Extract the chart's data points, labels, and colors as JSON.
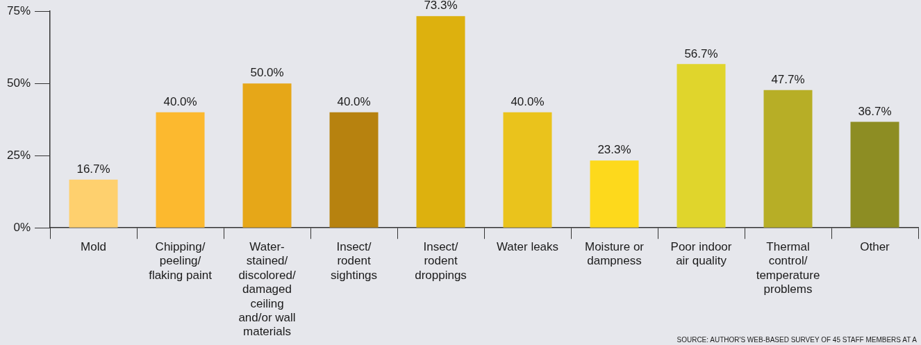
{
  "chart_data": {
    "type": "bar",
    "categories": [
      "Mold",
      "Chipping/ peeling/ flaking paint",
      "Water-stained/ discolored/ damaged ceiling and/or wall materials",
      "Insect/ rodent sightings",
      "Insect/ rodent droppings",
      "Water leaks",
      "Moisture or dampness",
      "Poor indoor air quality",
      "Thermal control/ temperature problems",
      "Other"
    ],
    "values": [
      16.7,
      40.0,
      50.0,
      40.0,
      73.3,
      40.0,
      23.3,
      56.7,
      47.7,
      36.7
    ],
    "colors": [
      "#fed06e",
      "#fcb92f",
      "#e6a718",
      "#b7820f",
      "#ddb10e",
      "#eac31c",
      "#fdd91c",
      "#e0d52c",
      "#b7ae26",
      "#8d8d23"
    ],
    "value_labels": [
      "16.7%",
      "40.0%",
      "50.0%",
      "40.0%",
      "73.3%",
      "40.0%",
      "23.3%",
      "56.7%",
      "47.7%",
      "36.7%"
    ],
    "ylim": [
      0,
      75
    ],
    "yticks": [
      {
        "value": 0,
        "label": "0%"
      },
      {
        "value": 25,
        "label": "25%"
      },
      {
        "value": 50,
        "label": "50%"
      },
      {
        "value": 75,
        "label": "75%"
      }
    ],
    "grid": false,
    "legend": false,
    "annotations": [
      "SOURCE: AUTHOR'S WEB-BASED SURVEY OF 45 STAFF MEMBERS AT A"
    ]
  }
}
